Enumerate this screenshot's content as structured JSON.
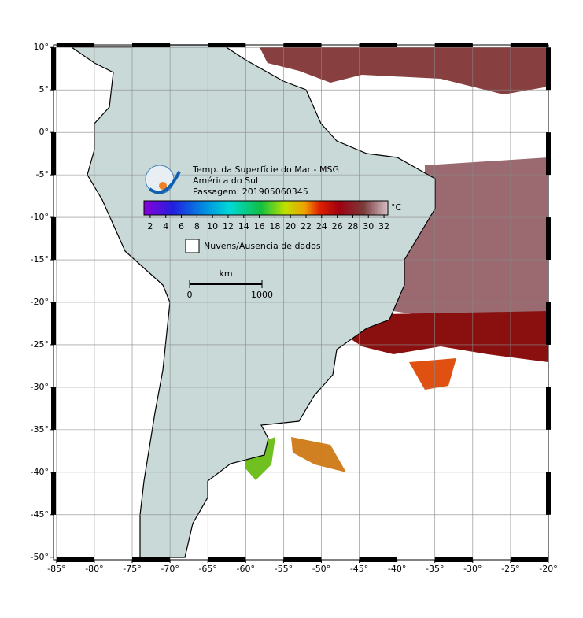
{
  "title": {
    "lines": [
      "Temp. da Superfície do Mar - MSG",
      "América do Sul",
      "Passagem: 201905060345"
    ]
  },
  "colorbar": {
    "lim": [
      1.2,
      32.5
    ],
    "ticks": [
      2,
      4,
      6,
      8,
      10,
      12,
      14,
      16,
      18,
      20,
      22,
      24,
      26,
      28,
      30,
      32
    ],
    "unit": "°C"
  },
  "legend": {
    "label": "Nuvens/Ausencia de dados"
  },
  "scale_bar": {
    "unit": "km",
    "ticks": [
      0,
      1000
    ]
  },
  "map": {
    "lonlim": [
      -85.4,
      -20
    ],
    "latlim": [
      -50.3,
      10.3
    ],
    "lon_ticks": [
      {
        "value": -85,
        "label": "-85°"
      },
      {
        "value": -80,
        "label": "-80°"
      },
      {
        "value": -75,
        "label": "-75°"
      },
      {
        "value": -70,
        "label": "-70°"
      },
      {
        "value": -65,
        "label": "-65°"
      },
      {
        "value": -60,
        "label": "-60°"
      },
      {
        "value": -55,
        "label": "-55°"
      },
      {
        "value": -50,
        "label": "-50°"
      },
      {
        "value": -45,
        "label": "-45°"
      },
      {
        "value": -40,
        "label": "-40°"
      },
      {
        "value": -35,
        "label": "-35°"
      },
      {
        "value": -30,
        "label": "-30°"
      },
      {
        "value": -25,
        "label": "-25°"
      },
      {
        "value": -20,
        "label": "-20°"
      }
    ],
    "lat_ticks": [
      {
        "value": 10,
        "label": "10°"
      },
      {
        "value": 5,
        "label": "5°"
      },
      {
        "value": 0,
        "label": "0°"
      },
      {
        "value": -5,
        "label": "-5°"
      },
      {
        "value": -10,
        "label": "-10°"
      },
      {
        "value": -15,
        "label": "-15°"
      },
      {
        "value": -20,
        "label": "-20°"
      },
      {
        "value": -25,
        "label": "-25°"
      },
      {
        "value": -30,
        "label": "-30°"
      },
      {
        "value": -35,
        "label": "-35°"
      },
      {
        "value": -40,
        "label": "-40°"
      },
      {
        "value": -45,
        "label": "-45°"
      },
      {
        "value": -50,
        "label": "-50°"
      }
    ]
  }
}
